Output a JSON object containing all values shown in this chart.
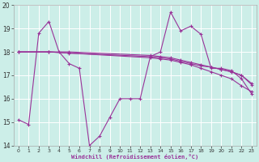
{
  "xlabel": "Windchill (Refroidissement éolien,°C)",
  "bg_color": "#cceee8",
  "line_color": "#993399",
  "xlim": [
    -0.5,
    23.5
  ],
  "ylim": [
    14,
    20
  ],
  "yticks": [
    14,
    15,
    16,
    17,
    18,
    19,
    20
  ],
  "xticks": [
    0,
    1,
    2,
    3,
    4,
    5,
    6,
    7,
    8,
    9,
    10,
    11,
    12,
    13,
    14,
    15,
    16,
    17,
    18,
    19,
    20,
    21,
    22,
    23
  ],
  "series": [
    {
      "x": [
        0,
        1,
        2,
        3,
        4,
        5,
        6,
        7,
        8,
        9,
        10,
        11,
        12,
        13,
        14,
        15,
        16,
        17,
        18,
        19,
        20,
        21,
        22,
        23
      ],
      "y": [
        15.1,
        14.9,
        18.8,
        19.3,
        18.0,
        17.5,
        17.3,
        14.0,
        14.4,
        15.2,
        16.0,
        16.0,
        16.0,
        17.8,
        18.0,
        19.7,
        18.9,
        19.1,
        18.75,
        17.3,
        17.3,
        17.2,
        16.85,
        16.2
      ]
    },
    {
      "x": [
        0,
        3,
        13,
        14,
        15,
        16,
        17,
        18,
        19,
        20,
        21,
        22,
        23
      ],
      "y": [
        18.0,
        18.0,
        17.75,
        17.7,
        17.65,
        17.55,
        17.45,
        17.3,
        17.15,
        17.0,
        16.85,
        16.55,
        16.3
      ]
    },
    {
      "x": [
        0,
        3,
        5,
        13,
        14,
        15,
        16,
        17,
        18,
        19,
        20,
        21,
        22,
        23
      ],
      "y": [
        18.0,
        18.0,
        17.95,
        17.8,
        17.75,
        17.7,
        17.6,
        17.5,
        17.4,
        17.35,
        17.25,
        17.15,
        17.0,
        16.6
      ]
    },
    {
      "x": [
        0,
        3,
        5,
        13,
        14,
        15,
        16,
        17,
        18,
        19,
        20,
        21,
        22,
        23
      ],
      "y": [
        18.0,
        18.0,
        18.0,
        17.85,
        17.8,
        17.75,
        17.65,
        17.55,
        17.45,
        17.35,
        17.25,
        17.15,
        17.0,
        16.65
      ]
    }
  ]
}
